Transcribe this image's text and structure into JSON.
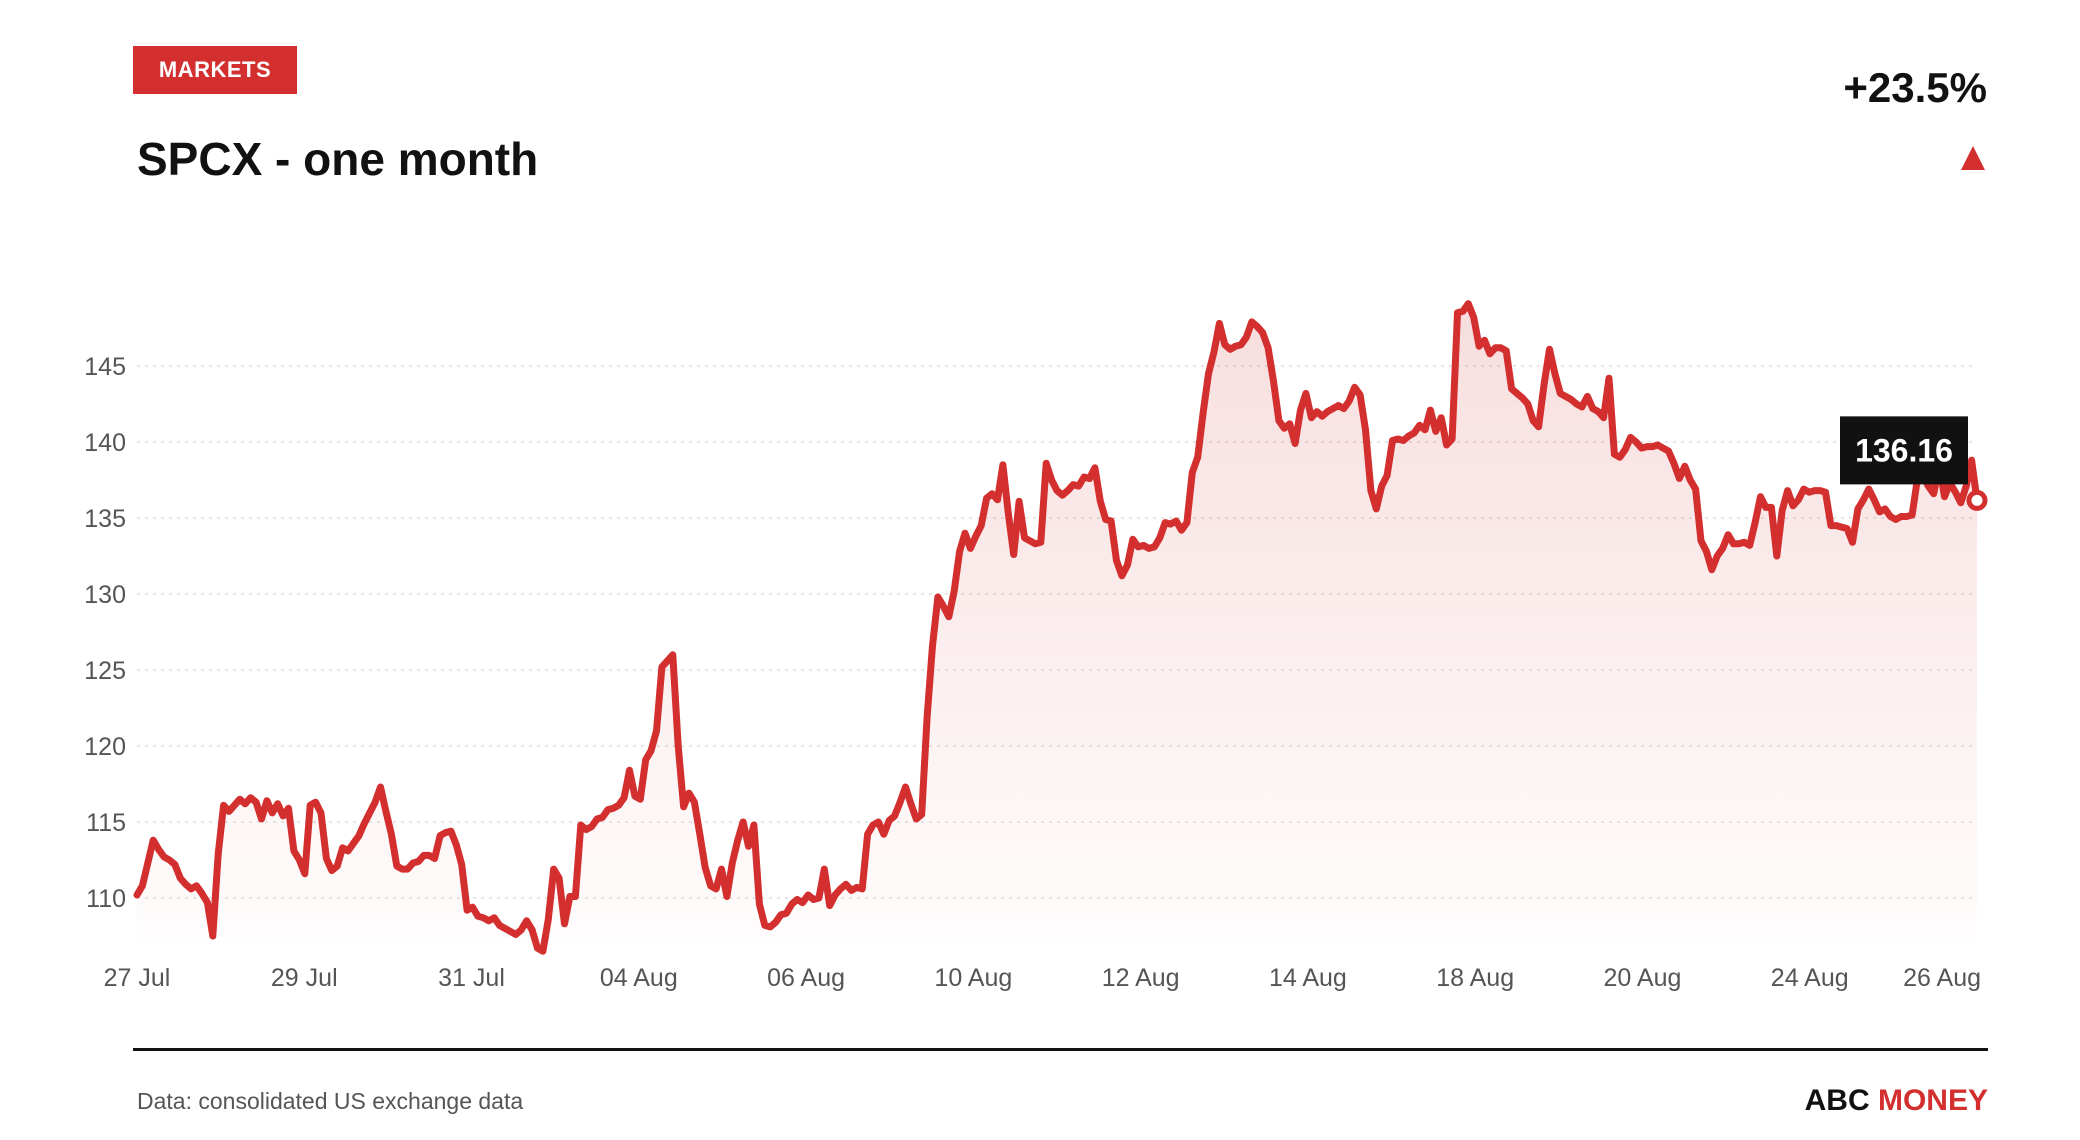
{
  "header": {
    "category_badge": "MARKETS",
    "title": "SPCX - one month",
    "change": "+23.5%",
    "change_direction_icon": "triangle-up-icon"
  },
  "footer": {
    "source": "Data: consolidated US exchange data",
    "brand_part1": "ABC",
    "brand_part2": "MONEY"
  },
  "colors": {
    "accent": "#d32f2f",
    "text": "#111111",
    "muted": "#555555",
    "grid": "#dddddd"
  },
  "chart_data": {
    "type": "area",
    "title": "SPCX - one month",
    "xlabel": "",
    "ylabel": "",
    "ylim": [
      107,
      148
    ],
    "yticks": [
      110,
      115,
      120,
      125,
      130,
      135,
      140,
      145
    ],
    "grid": true,
    "legend": "none",
    "x_tick_labels": [
      "27 Jul",
      "29 Jul",
      "31 Jul",
      "04 Aug",
      "06 Aug",
      "10 Aug",
      "12 Aug",
      "14 Aug",
      "18 Aug",
      "20 Aug",
      "24 Aug",
      "26 Aug"
    ],
    "last_value_label": "136.16",
    "series": [
      {
        "values": [
          110.2,
          110.8,
          112.3,
          113.8,
          113.2,
          112.7,
          112.5,
          112.2,
          111.3,
          110.9,
          110.6,
          110.8,
          110.3,
          109.7,
          107.5,
          112.9,
          116.1,
          115.7,
          116.1,
          116.5,
          116.2,
          116.6,
          116.3,
          115.2,
          116.4,
          115.6,
          116.2,
          115.4,
          115.9,
          113.1,
          112.5,
          111.6,
          116.1,
          116.3,
          115.6,
          112.6,
          111.8,
          112.1,
          113.3,
          113.1,
          113.6,
          114.1,
          114.9,
          115.6,
          116.3,
          117.3,
          115.7,
          114.2,
          112.1,
          111.9,
          111.9,
          112.3,
          112.4,
          112.8,
          112.8,
          112.6,
          114.1,
          114.3,
          114.4,
          113.5,
          112.2,
          109.2,
          109.4,
          108.8,
          108.7,
          108.5,
          108.7,
          108.2,
          108.0,
          107.8,
          107.6,
          107.9,
          108.5,
          107.9,
          106.7,
          106.5,
          108.6,
          111.9,
          111.3,
          108.3,
          110.1,
          110.1,
          114.8,
          114.5,
          114.7,
          115.2,
          115.3,
          115.8,
          115.9,
          116.1,
          116.6,
          118.4,
          116.7,
          116.5,
          119.1,
          119.7,
          121.0,
          125.2,
          125.6,
          126.0,
          120.0,
          116.0,
          116.9,
          116.3,
          114.2,
          112.0,
          110.8,
          110.6,
          111.9,
          110.1,
          112.3,
          113.8,
          115.0,
          113.4,
          114.8,
          109.6,
          108.2,
          108.1,
          108.4,
          108.9,
          109.0,
          109.6,
          109.9,
          109.7,
          110.2,
          109.9,
          110.0,
          111.9,
          109.5,
          110.2,
          110.6,
          110.9,
          110.5,
          110.7,
          110.6,
          114.2,
          114.8,
          115.0,
          114.2,
          115.1,
          115.4,
          116.3,
          117.3,
          116.2,
          115.2,
          115.5,
          121.9,
          126.6,
          129.8,
          129.2,
          128.5,
          130.2,
          132.8,
          134.0,
          133.0,
          133.8,
          134.5,
          136.3,
          136.6,
          136.2,
          138.5,
          135.3,
          132.6,
          136.1,
          133.7,
          133.5,
          133.3,
          133.4,
          138.6,
          137.5,
          136.8,
          136.5,
          136.8,
          137.2,
          137.1,
          137.7,
          137.6,
          138.3,
          136.1,
          134.9,
          134.8,
          132.2,
          131.2,
          131.9,
          133.6,
          133.1,
          133.2,
          133.0,
          133.1,
          133.7,
          134.7,
          134.6,
          134.8,
          134.2,
          134.7,
          138.0,
          139.0,
          141.9,
          144.5,
          145.9,
          147.8,
          146.4,
          146.1,
          146.3,
          146.4,
          146.9,
          147.9,
          147.6,
          147.2,
          146.2,
          144.0,
          141.4,
          140.9,
          141.2,
          139.9,
          142.1,
          143.2,
          141.6,
          142.0,
          141.7,
          142.0,
          142.2,
          142.4,
          142.2,
          142.7,
          143.6,
          143.1,
          140.8,
          136.8,
          135.6,
          137.1,
          137.8,
          140.1,
          140.2,
          140.1,
          140.4,
          140.6,
          141.1,
          140.8,
          142.1,
          140.7,
          141.6,
          139.8,
          140.2,
          148.5,
          148.6,
          149.1,
          148.2,
          146.3,
          146.7,
          145.8,
          146.2,
          146.2,
          146.0,
          143.5,
          143.2,
          142.9,
          142.5,
          141.4,
          141.0,
          143.8,
          146.1,
          144.5,
          143.2,
          143.0,
          142.8,
          142.5,
          142.3,
          143.0,
          142.2,
          142.0,
          141.6,
          144.2,
          139.2,
          139.0,
          139.5,
          140.3,
          140.0,
          139.6,
          139.7,
          139.7,
          139.8,
          139.6,
          139.4,
          138.6,
          137.6,
          138.4,
          137.5,
          136.9,
          133.5,
          132.8,
          131.6,
          132.5,
          133.0,
          133.9,
          133.3,
          133.3,
          133.4,
          133.2,
          134.7,
          136.4,
          135.7,
          135.7,
          132.5,
          135.5,
          136.8,
          135.8,
          136.2,
          136.9,
          136.7,
          136.8,
          136.8,
          136.7,
          134.5,
          134.5,
          134.4,
          134.3,
          133.4,
          135.6,
          136.2,
          136.9,
          136.2,
          135.4,
          135.6,
          135.1,
          134.9,
          135.1,
          135.1,
          135.2,
          137.6,
          137.8,
          137.1,
          136.6,
          138.5,
          136.4,
          137.3,
          136.7,
          136.0,
          137.1,
          138.8,
          136.16
        ]
      }
    ]
  }
}
